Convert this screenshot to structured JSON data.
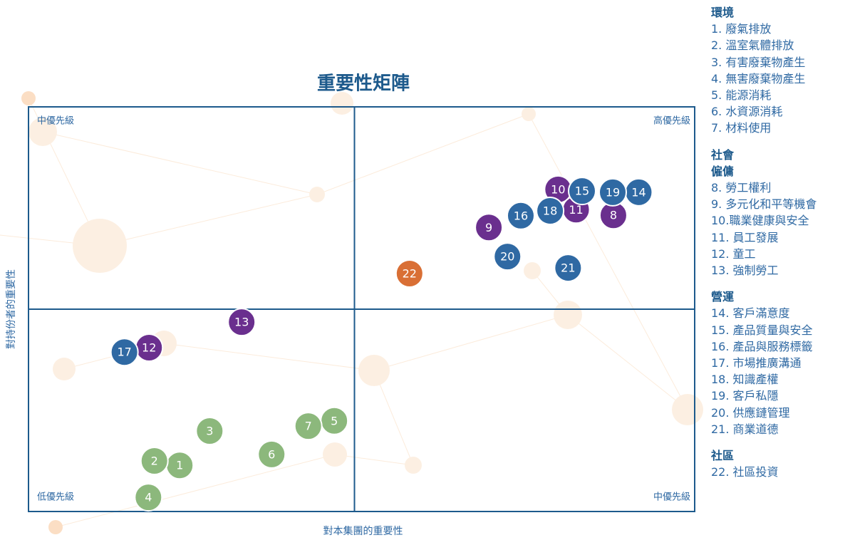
{
  "chart_data": {
    "type": "scatter",
    "title": "重要性矩陣",
    "x_label": "對本集團的重要性",
    "y_label": "對持份者的重要性",
    "quadrant_labels": [
      "中優先級",
      "高優先級",
      "低優先級",
      "中優先級"
    ],
    "xlim": [
      0,
      10
    ],
    "ylim": [
      0,
      10
    ],
    "series": [
      {
        "name": "環境",
        "color": "#8cb87c",
        "labels": [
          "1",
          "2",
          "3",
          "4",
          "5",
          "6",
          "7"
        ],
        "x": [
          2.27,
          1.89,
          2.72,
          1.8,
          4.59,
          3.65,
          4.2
        ],
        "values": [
          1.14,
          1.25,
          1.99,
          0.35,
          2.24,
          1.41,
          2.11
        ],
        "items": [
          "1. 廢氣排放",
          "2. 溫室氣體排放",
          "3. 有害廢棄物產生",
          "4. 無害廢棄物產生",
          "5. 能源消耗",
          "6. 水資源消耗",
          "7. 材料使用"
        ]
      },
      {
        "name": "僱傭",
        "group": "社會",
        "color": "#6a2f8e",
        "labels": [
          "8",
          "9",
          "10",
          "11",
          "12",
          "13"
        ],
        "x": [
          8.78,
          6.91,
          7.95,
          8.22,
          1.81,
          3.2
        ],
        "values": [
          7.32,
          7.02,
          7.96,
          7.46,
          4.05,
          4.68
        ],
        "items": [
          "8. 勞工權利",
          "9. 多元化和平等機會",
          "10.職業健康與安全",
          "11. 員工發展",
          "12. 童工",
          "13. 強制勞工"
        ]
      },
      {
        "name": "營運",
        "color": "#2f69a3",
        "labels": [
          "14",
          "15",
          "16",
          "17",
          "18",
          "19",
          "20",
          "21"
        ],
        "x": [
          9.16,
          8.31,
          7.39,
          1.44,
          7.83,
          8.77,
          7.19,
          8.1
        ],
        "values": [
          7.89,
          7.92,
          7.31,
          3.94,
          7.43,
          7.89,
          6.3,
          6.02
        ],
        "items": [
          "14. 客戶滿意度",
          "15. 產品質量與安全",
          "16. 產品與服務標籤",
          "17. 市場推廣溝通",
          "18. 知識產權",
          "19. 客戶私隱",
          "20. 供應鏈管理",
          "21. 商業道德"
        ]
      },
      {
        "name": "社區",
        "color": "#d96f35",
        "labels": [
          "22"
        ],
        "x": [
          5.72
        ],
        "values": [
          5.88
        ],
        "items": [
          "22. 社區投資"
        ]
      }
    ]
  }
}
